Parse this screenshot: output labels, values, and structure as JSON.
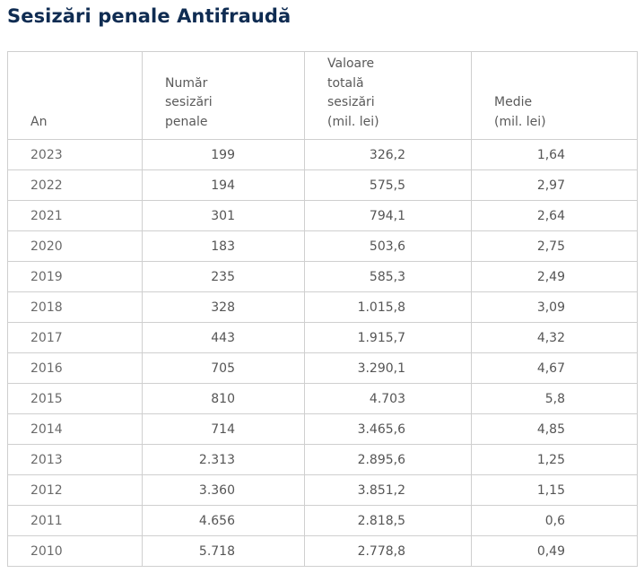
{
  "title": "Sesizări penale Antifraudă",
  "table": {
    "headers": [
      [
        "An"
      ],
      [
        "Număr",
        "sesizări",
        "penale"
      ],
      [
        "Valoare",
        "totală",
        "sesizări",
        "(mil. lei)"
      ],
      [
        "Medie",
        "(mil. lei)"
      ]
    ],
    "rows": [
      {
        "year": "2023",
        "count": "199",
        "total": "326,2",
        "avg": "1,64"
      },
      {
        "year": "2022",
        "count": "194",
        "total": "575,5",
        "avg": "2,97"
      },
      {
        "year": "2021",
        "count": "301",
        "total": "794,1",
        "avg": "2,64"
      },
      {
        "year": "2020",
        "count": "183",
        "total": "503,6",
        "avg": "2,75"
      },
      {
        "year": "2019",
        "count": "235",
        "total": "585,3",
        "avg": "2,49"
      },
      {
        "year": "2018",
        "count": "328",
        "total": "1.015,8",
        "avg": "3,09"
      },
      {
        "year": "2017",
        "count": "443",
        "total": "1.915,7",
        "avg": "4,32"
      },
      {
        "year": "2016",
        "count": "705",
        "total": "3.290,1",
        "avg": "4,67"
      },
      {
        "year": "2015",
        "count": "810",
        "total": "4.703",
        "avg": "5,8"
      },
      {
        "year": "2014",
        "count": "714",
        "total": "3.465,6",
        "avg": "4,85"
      },
      {
        "year": "2013",
        "count": "2.313",
        "total": "2.895,6",
        "avg": "1,25"
      },
      {
        "year": "2012",
        "count": "3.360",
        "total": "3.851,2",
        "avg": "1,15"
      },
      {
        "year": "2011",
        "count": "4.656",
        "total": "2.818,5",
        "avg": "0,6"
      },
      {
        "year": "2010",
        "count": "5.718",
        "total": "2.778,8",
        "avg": "0,49"
      }
    ]
  }
}
